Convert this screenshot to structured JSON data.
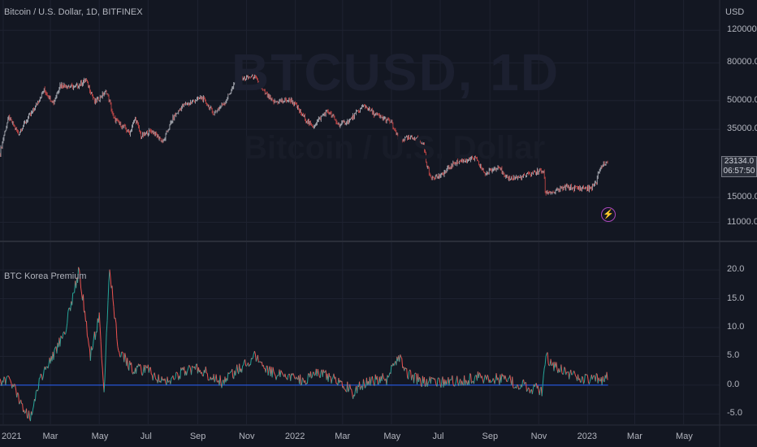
{
  "header": {
    "symbol_title": "Bitcoin / U.S. Dollar, 1D, BITFINEX",
    "currency": "USD",
    "watermark": "BTCUSD, 1D",
    "watermark_sub": "Bitcoin / U.S. Dollar"
  },
  "last_price": {
    "price": "23134.0",
    "countdown": "06:57:50"
  },
  "indicator": {
    "title": "BTC Korea Premium"
  },
  "icons": {
    "alert": "lightning-bolt-icon"
  },
  "colors": {
    "background": "#131722",
    "candle_up": "#d1d4dc",
    "candle_down": "#ef5350",
    "premium_line_up": "#26a69a",
    "premium_line_down": "#ef5350",
    "baseline": "#2962ff",
    "alert": "#ab47bc"
  },
  "chart_data": [
    {
      "type": "line",
      "title": "Bitcoin / U.S. Dollar, 1D, BITFINEX",
      "scale": "log",
      "ylabel": "USD",
      "y_ticks": [
        "120000.0",
        "80000.0",
        "50000.0",
        "35000.0",
        "23134.0",
        "15000.0",
        "11000.0"
      ],
      "y_tick_values": [
        120000,
        80000,
        50000,
        35000,
        23134,
        15000,
        11000
      ],
      "x_ticks": [
        "2021",
        "Mar",
        "May",
        "Jul",
        "Sep",
        "Nov",
        "2022",
        "Mar",
        "May",
        "Jul",
        "Sep",
        "Nov",
        "2023",
        "Mar",
        "May"
      ],
      "x_tick_dates": [
        "2021-01-01",
        "2021-03-01",
        "2021-05-01",
        "2021-07-01",
        "2021-09-01",
        "2021-11-01",
        "2022-01-01",
        "2022-03-01",
        "2022-05-01",
        "2022-07-01",
        "2022-09-01",
        "2022-11-01",
        "2023-01-01",
        "2023-03-01",
        "2023-05-01"
      ],
      "x_range": [
        "2020-12-28",
        "2023-06-15"
      ],
      "series": [
        {
          "x": [
            "2020-12-28",
            "2021-01-08",
            "2021-01-20",
            "2021-02-08",
            "2021-02-21",
            "2021-03-05",
            "2021-03-13",
            "2021-04-01",
            "2021-04-14",
            "2021-04-25",
            "2021-05-10",
            "2021-05-19",
            "2021-06-08",
            "2021-06-15",
            "2021-06-22",
            "2021-07-05",
            "2021-07-20",
            "2021-08-01",
            "2021-08-14",
            "2021-09-06",
            "2021-09-21",
            "2021-10-05",
            "2021-10-20",
            "2021-11-10",
            "2021-11-20",
            "2021-12-04",
            "2021-12-27",
            "2022-01-10",
            "2022-01-22",
            "2022-02-10",
            "2022-02-24",
            "2022-03-10",
            "2022-03-28",
            "2022-04-10",
            "2022-04-30",
            "2022-05-10",
            "2022-05-31",
            "2022-06-10",
            "2022-06-14",
            "2022-06-18",
            "2022-07-01",
            "2022-07-20",
            "2022-08-13",
            "2022-08-26",
            "2022-09-12",
            "2022-09-20",
            "2022-10-10",
            "2022-10-28",
            "2022-11-07",
            "2022-11-09",
            "2022-11-20",
            "2022-12-05",
            "2022-12-20",
            "2023-01-05",
            "2023-01-12",
            "2023-01-14",
            "2023-01-21",
            "2023-01-26"
          ],
          "values": [
            26000,
            40500,
            33000,
            44500,
            57000,
            48500,
            61000,
            59000,
            64500,
            49000,
            56000,
            40000,
            33500,
            40000,
            32000,
            34500,
            29800,
            40000,
            47000,
            52000,
            42500,
            49000,
            64000,
            68000,
            57000,
            49000,
            50500,
            41500,
            36000,
            44000,
            37000,
            39000,
            47000,
            42000,
            38500,
            30500,
            31800,
            28500,
            22500,
            19500,
            19500,
            23200,
            24400,
            20000,
            22300,
            19000,
            19300,
            20600,
            20800,
            16000,
            16000,
            17000,
            16800,
            16800,
            17900,
            20500,
            22800,
            23134
          ]
        }
      ]
    },
    {
      "type": "line",
      "title": "BTC Korea Premium",
      "y_ticks": [
        "20.0",
        "15.0",
        "10.0",
        "5.0",
        "0.0",
        "-5.0"
      ],
      "y_tick_values": [
        20,
        15,
        10,
        5,
        0,
        -5
      ],
      "ylim": [
        -6.5,
        21
      ],
      "baseline": 0,
      "series": [
        {
          "x": [
            "2020-12-28",
            "2021-01-10",
            "2021-01-25",
            "2021-02-05",
            "2021-02-15",
            "2021-03-01",
            "2021-03-20",
            "2021-04-06",
            "2021-04-20",
            "2021-05-01",
            "2021-05-07",
            "2021-05-14",
            "2021-05-25",
            "2021-06-10",
            "2021-07-01",
            "2021-07-20",
            "2021-08-10",
            "2021-09-01",
            "2021-10-01",
            "2021-10-20",
            "2021-11-10",
            "2021-11-25",
            "2021-12-15",
            "2022-01-10",
            "2022-02-01",
            "2022-03-01",
            "2022-03-15",
            "2022-04-01",
            "2022-04-25",
            "2022-05-10",
            "2022-05-20",
            "2022-06-10",
            "2022-07-01",
            "2022-08-01",
            "2022-09-01",
            "2022-10-01",
            "2022-10-25",
            "2022-11-05",
            "2022-11-10",
            "2022-11-20",
            "2022-12-05",
            "2022-12-20",
            "2023-01-05",
            "2023-01-26"
          ],
          "values": [
            0.5,
            0.8,
            -3.5,
            -5.5,
            1.0,
            4.0,
            10.0,
            20.0,
            5.0,
            12.0,
            -1.0,
            20.0,
            6.0,
            3.0,
            2.5,
            0.5,
            2.0,
            3.0,
            0.5,
            2.5,
            5.0,
            3.0,
            1.5,
            1.0,
            2.0,
            0.5,
            -1.5,
            1.0,
            1.0,
            5.0,
            2.0,
            0.5,
            0.5,
            1.0,
            1.5,
            0.5,
            -0.5,
            -1.0,
            5.0,
            3.5,
            2.5,
            1.0,
            0.8,
            1.3
          ]
        }
      ]
    }
  ]
}
